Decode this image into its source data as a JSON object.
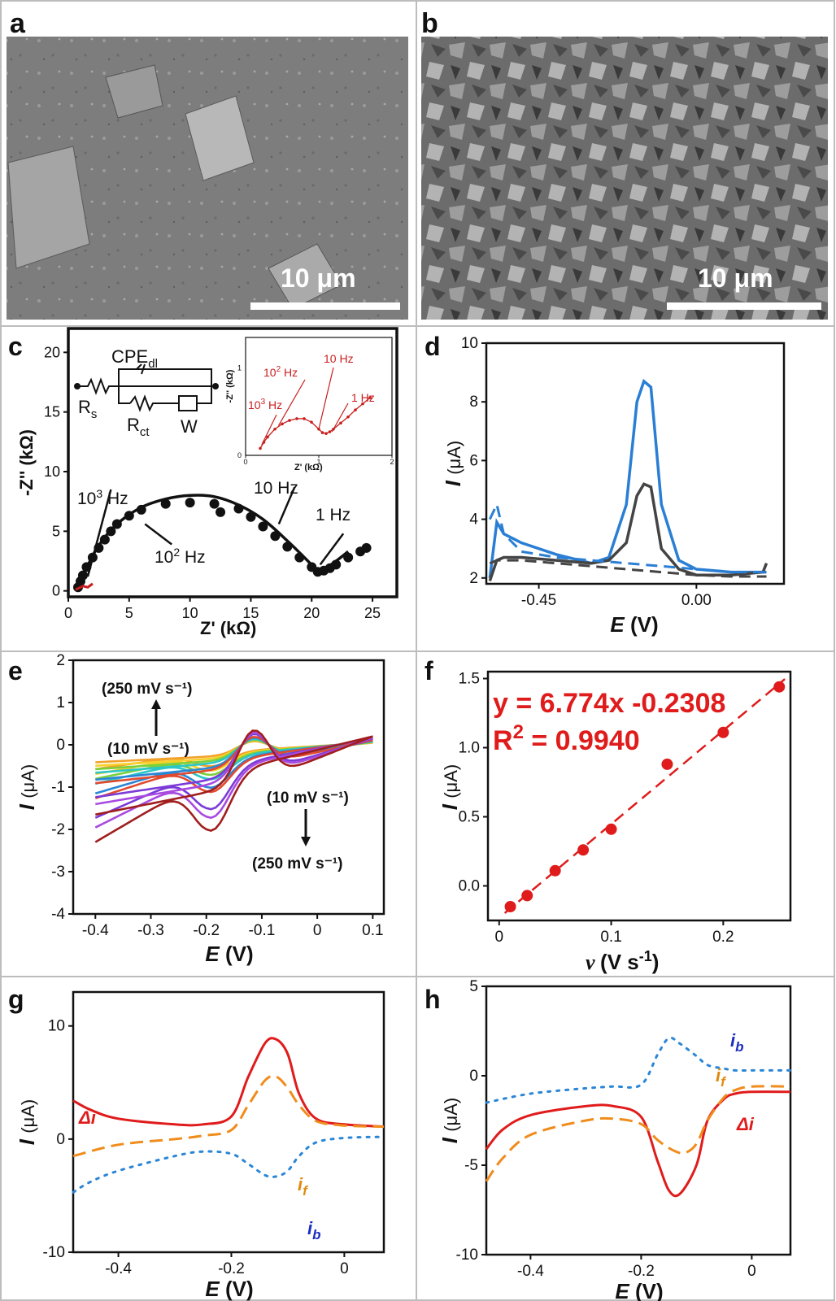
{
  "colors": {
    "blue": "#2a7fd4",
    "dark": "#444444",
    "red": "#e01b1b",
    "darkred": "#c81e1e",
    "orange": "#f08c1c",
    "dotblue": "#2a86d6",
    "label_blue": "#1a2fbf",
    "label_orange": "#e08a10"
  },
  "panels": {
    "a": {
      "letter": "a",
      "scale_label": "10 μm"
    },
    "b": {
      "letter": "b",
      "scale_label": "10 μm"
    }
  },
  "chart_data": [
    {
      "panel": "c",
      "type": "scatter",
      "xlabel": "Z' (kΩ)",
      "ylabel": "-Z'' (kΩ)",
      "xlim": [
        0,
        27
      ],
      "ylim": [
        -0.5,
        22
      ],
      "xticks": [
        0,
        5,
        10,
        15,
        20,
        25
      ],
      "yticks": [
        0,
        5,
        10,
        15,
        20
      ],
      "series": [
        {
          "x": [
            0.8,
            1,
            1.2,
            1.5,
            2,
            2.5,
            3,
            3.5,
            4,
            5,
            6,
            8,
            10,
            12,
            12.5,
            14,
            15,
            16,
            17,
            18,
            19,
            20,
            20.5,
            21,
            21.5,
            22,
            23,
            24,
            24.5
          ],
          "y": [
            0.3,
            0.8,
            1.3,
            2,
            2.8,
            3.6,
            4.3,
            5,
            5.6,
            6.3,
            6.8,
            7.3,
            7.4,
            7.3,
            6.6,
            6.9,
            6.2,
            5.4,
            4.6,
            3.7,
            2.8,
            2.0,
            1.6,
            1.7,
            1.9,
            2.2,
            2.8,
            3.3,
            3.6
          ]
        }
      ],
      "fit": {
        "x": [
          0.8,
          1.5,
          2.5,
          4,
          6,
          8,
          10,
          12,
          14,
          16,
          18,
          19.5,
          20.5,
          21,
          22,
          23
        ],
        "y": [
          0.2,
          1.9,
          3.8,
          5.6,
          7.0,
          7.7,
          8.0,
          7.9,
          7.2,
          6.0,
          4.2,
          2.7,
          1.7,
          1.8,
          2.5,
          3.3
        ]
      },
      "annotations": [
        "10³ Hz",
        "10² Hz",
        "10 Hz",
        "1 Hz"
      ],
      "circuit": {
        "labels": [
          "CPE",
          "dl",
          "R",
          "s",
          "R",
          "ct",
          "W"
        ]
      },
      "inset": {
        "xlabel": "Z' (kΩ)",
        "ylabel": "-Z'' (kΩ)",
        "xticks": [
          "0",
          "1",
          "2"
        ],
        "yticks": [
          "0",
          "1"
        ],
        "annotations": [
          "10³ Hz",
          "10² Hz",
          "10 Hz",
          "1 Hz"
        ]
      }
    },
    {
      "panel": "d",
      "type": "line",
      "xlabel": "E (V)",
      "ylabel": "I (μA)",
      "xlim": [
        -0.6,
        0.25
      ],
      "ylim": [
        1.8,
        10
      ],
      "xticks": [
        -0.45,
        0.0
      ],
      "xtick_labels": [
        "-0.45",
        "0.00"
      ],
      "yticks": [
        2,
        4,
        6,
        8,
        10
      ],
      "series": [
        {
          "style": "blue-solid",
          "x": [
            -0.59,
            -0.57,
            -0.55,
            -0.5,
            -0.4,
            -0.3,
            -0.25,
            -0.2,
            -0.17,
            -0.15,
            -0.13,
            -0.1,
            -0.05,
            0.0,
            0.1,
            0.2
          ],
          "y": [
            2.0,
            3.9,
            3.5,
            3.2,
            2.8,
            2.5,
            2.7,
            4.5,
            8.0,
            8.7,
            8.5,
            4.5,
            2.6,
            2.3,
            2.2,
            2.2
          ]
        },
        {
          "style": "dark-solid",
          "x": [
            -0.59,
            -0.57,
            -0.55,
            -0.5,
            -0.4,
            -0.3,
            -0.25,
            -0.2,
            -0.17,
            -0.15,
            -0.13,
            -0.1,
            -0.05,
            0.0,
            0.1,
            0.19,
            0.2
          ],
          "y": [
            1.9,
            2.6,
            2.7,
            2.7,
            2.6,
            2.5,
            2.6,
            3.2,
            4.8,
            5.2,
            5.1,
            3.0,
            2.3,
            2.1,
            2.1,
            2.2,
            2.5
          ]
        },
        {
          "style": "blue-dash",
          "x": [
            -0.59,
            -0.57,
            -0.55,
            -0.5,
            -0.4,
            -0.3,
            -0.2,
            -0.1,
            0.0,
            0.1,
            0.2
          ],
          "y": [
            4.0,
            4.5,
            3.5,
            2.9,
            2.7,
            2.6,
            2.5,
            2.4,
            2.3,
            2.2,
            2.2
          ]
        },
        {
          "style": "dark-dash",
          "x": [
            -0.59,
            -0.57,
            -0.5,
            -0.4,
            -0.3,
            -0.2,
            -0.1,
            0.0,
            0.1,
            0.2
          ],
          "y": [
            2.5,
            2.6,
            2.6,
            2.5,
            2.4,
            2.3,
            2.2,
            2.1,
            2.05,
            2.05
          ]
        }
      ]
    },
    {
      "panel": "e",
      "type": "line",
      "xlabel": "E (V)",
      "ylabel": "I (μA)",
      "xlim": [
        -0.44,
        0.12
      ],
      "ylim": [
        -4,
        2
      ],
      "xticks": [
        -0.4,
        -0.3,
        -0.2,
        -0.1,
        0.0,
        0.1
      ],
      "yticks": [
        -4,
        -3,
        -2,
        -1,
        0,
        1,
        2
      ],
      "annotations": [
        "(250 mV s⁻¹)",
        "(10 mV s⁻¹)",
        "(10 mV s⁻¹)",
        "(250 mV s⁻¹)"
      ],
      "series": [
        {
          "color": "#f2a12a",
          "scale": 0.25
        },
        {
          "color": "#f6d12a",
          "scale": 0.3
        },
        {
          "color": "#7ad03a",
          "scale": 0.35
        },
        {
          "color": "#2cc6c6",
          "scale": 0.4
        },
        {
          "color": "#2a86d6",
          "scale": 0.5
        },
        {
          "color": "#e24a30",
          "scale": 0.55
        },
        {
          "color": "#7a3ad8",
          "scale": 0.75
        },
        {
          "color": "#a84ae0",
          "scale": 0.85
        },
        {
          "color": "#a01e1e",
          "scale": 1.0
        }
      ]
    },
    {
      "panel": "f",
      "type": "scatter",
      "xlabel": "ν (V s-1)",
      "ylabel": "I (μA)",
      "xlim": [
        -0.01,
        0.26
      ],
      "ylim": [
        -0.25,
        1.55
      ],
      "xticks": [
        0.0,
        0.1,
        0.2
      ],
      "yticks": [
        0.0,
        0.5,
        1.0,
        1.5
      ],
      "x": [
        0.01,
        0.025,
        0.05,
        0.075,
        0.1,
        0.15,
        0.2,
        0.25
      ],
      "y": [
        -0.15,
        -0.07,
        0.11,
        0.26,
        0.41,
        0.88,
        1.11,
        1.44
      ],
      "fit_label": "y = 6.774x -0.2308",
      "r2_label": "R",
      "r2_sup": "2",
      "r2_value": " = 0.9940"
    },
    {
      "panel": "g",
      "type": "line",
      "xlabel": "E (V)",
      "ylabel": "I (μA)",
      "xlim": [
        -0.48,
        0.07
      ],
      "ylim": [
        -10,
        13
      ],
      "xticks": [
        -0.4,
        -0.2,
        0.0
      ],
      "yticks": [
        -10,
        0,
        10
      ],
      "series": [
        {
          "name": "Δi",
          "style": "red-solid",
          "x": [
            -0.48,
            -0.45,
            -0.4,
            -0.3,
            -0.25,
            -0.2,
            -0.17,
            -0.14,
            -0.12,
            -0.1,
            -0.08,
            -0.05,
            0,
            0.07
          ],
          "y": [
            3.4,
            2.6,
            1.8,
            1.3,
            1.3,
            2.0,
            5.5,
            8.5,
            8.8,
            7.5,
            4.0,
            1.8,
            1.3,
            1.1
          ]
        },
        {
          "name": "if",
          "style": "orange-dash",
          "x": [
            -0.48,
            -0.4,
            -0.3,
            -0.25,
            -0.2,
            -0.17,
            -0.14,
            -0.12,
            -0.1,
            -0.08,
            -0.05,
            0,
            0.07
          ],
          "y": [
            -1.5,
            -0.5,
            0,
            0.3,
            0.8,
            3.0,
            5.2,
            5.5,
            4.5,
            3.0,
            1.6,
            1.2,
            1.1
          ]
        },
        {
          "name": "ib",
          "style": "blue-dot",
          "x": [
            -0.48,
            -0.45,
            -0.4,
            -0.3,
            -0.25,
            -0.2,
            -0.17,
            -0.14,
            -0.12,
            -0.1,
            -0.08,
            -0.05,
            0,
            0.07
          ],
          "y": [
            -4.7,
            -3.8,
            -2.8,
            -1.5,
            -1.1,
            -1.3,
            -2.2,
            -3.2,
            -3.3,
            -2.8,
            -1.5,
            -0.3,
            0.1,
            0.2
          ]
        }
      ]
    },
    {
      "panel": "h",
      "type": "line",
      "xlabel": "E (V)",
      "ylabel": "I (μA)",
      "xlim": [
        -0.48,
        0.07
      ],
      "ylim": [
        -10,
        5
      ],
      "xticks": [
        -0.4,
        -0.2,
        0.0
      ],
      "yticks": [
        -10,
        -5,
        0,
        5
      ],
      "series": [
        {
          "name": "Δi",
          "style": "red-solid",
          "x": [
            -0.48,
            -0.45,
            -0.4,
            -0.3,
            -0.25,
            -0.2,
            -0.17,
            -0.15,
            -0.13,
            -0.1,
            -0.08,
            -0.05,
            -0.03,
            0,
            0.07
          ],
          "y": [
            -4.1,
            -3.0,
            -2.2,
            -1.7,
            -1.7,
            -2.3,
            -4.8,
            -6.4,
            -6.6,
            -5.0,
            -2.5,
            -1.3,
            -1.0,
            -0.9,
            -0.9
          ]
        },
        {
          "name": "if",
          "style": "orange-dash",
          "x": [
            -0.48,
            -0.45,
            -0.4,
            -0.3,
            -0.25,
            -0.2,
            -0.17,
            -0.14,
            -0.12,
            -0.1,
            -0.08,
            -0.05,
            -0.03,
            0,
            0.07
          ],
          "y": [
            -5.9,
            -4.6,
            -3.3,
            -2.5,
            -2.4,
            -2.7,
            -3.6,
            -4.2,
            -4.3,
            -3.8,
            -2.5,
            -1.2,
            -0.8,
            -0.6,
            -0.6
          ]
        },
        {
          "name": "ib",
          "style": "blue-dot",
          "x": [
            -0.48,
            -0.4,
            -0.3,
            -0.25,
            -0.2,
            -0.17,
            -0.15,
            -0.13,
            -0.1,
            -0.08,
            -0.05,
            -0.03,
            0,
            0.07
          ],
          "y": [
            -1.5,
            -1.0,
            -0.7,
            -0.6,
            -0.5,
            1.2,
            2.1,
            1.8,
            1.1,
            0.6,
            0.4,
            0.3,
            0.3,
            0.3
          ]
        }
      ],
      "labels": [
        "i",
        "b",
        "i",
        "f",
        "Δi"
      ]
    }
  ]
}
